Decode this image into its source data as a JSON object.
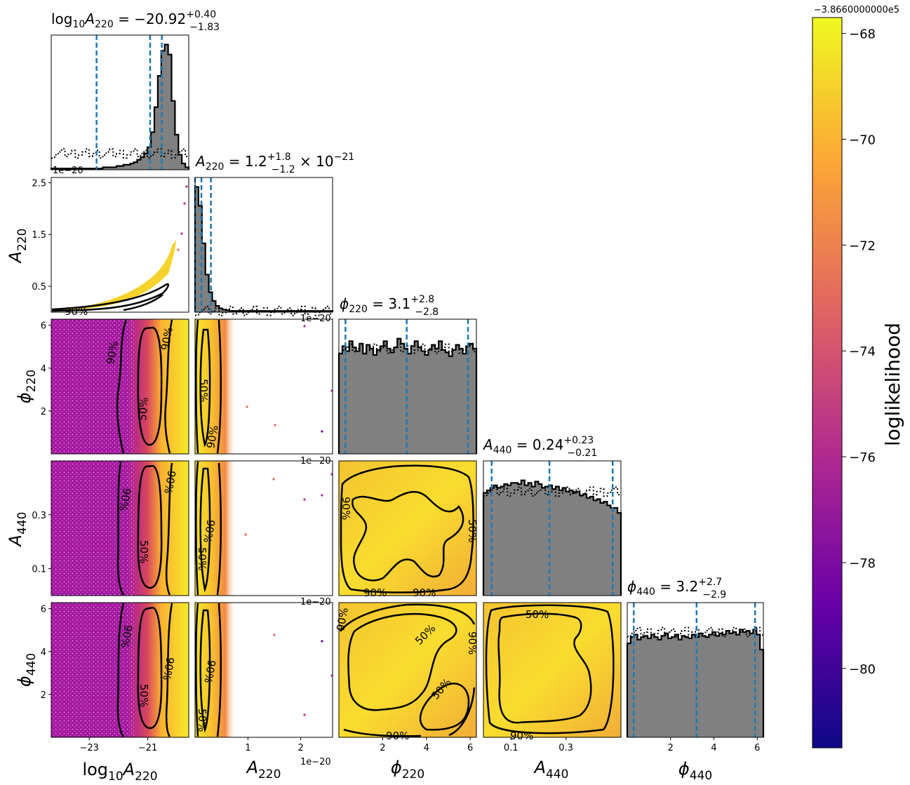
{
  "chart_data": {
    "type": "corner",
    "description_free": true,
    "parameters": [
      {
        "key": "log10A220",
        "axis_label": "log10A220",
        "title": "log10A220 = -20.92 +0.40 -1.83",
        "range": [
          -24.3,
          -19.6
        ],
        "ticks": [
          -23,
          -21
        ],
        "tick_labels": [
          "−23",
          "−21"
        ],
        "quantiles": [
          -22.75,
          -20.92,
          -20.52
        ],
        "peak": -20.92,
        "prior": "uniform"
      },
      {
        "key": "A220",
        "axis_label": "A220",
        "title": "A220 = 1.2 +1.8 -1.2 × 10^-21",
        "range": [
          0,
          2.6
        ],
        "scale_note": "1e−20",
        "ticks": [
          1,
          2
        ],
        "tick_labels": [
          "1",
          "2"
        ],
        "quantiles": [
          0.0,
          0.12,
          0.3
        ],
        "peak": 0.1,
        "prior": "uniform"
      },
      {
        "key": "phi220",
        "axis_label": "φ220",
        "title": "φ220 = 3.1 +2.8 -2.8",
        "range": [
          0,
          6.283
        ],
        "ticks": [
          2,
          4,
          6
        ],
        "tick_labels": [
          "2",
          "4",
          "6"
        ],
        "quantiles": [
          0.3,
          3.1,
          5.9
        ],
        "prior": "uniform"
      },
      {
        "key": "A440",
        "axis_label": "A440",
        "title": "A440 = 0.24 +0.23 -0.21",
        "range": [
          0.0,
          0.5
        ],
        "ticks": [
          0.1,
          0.3
        ],
        "tick_labels": [
          "0.1",
          "0.3"
        ],
        "quantiles": [
          0.03,
          0.24,
          0.47
        ],
        "prior": "uniform"
      },
      {
        "key": "phi440",
        "axis_label": "φ440",
        "title": "φ440 = 3.2 +2.7 -2.9",
        "range": [
          0,
          6.283
        ],
        "ticks": [
          2,
          4,
          6
        ],
        "tick_labels": [
          "2",
          "4",
          "6"
        ],
        "quantiles": [
          0.3,
          3.2,
          5.9
        ],
        "prior": "uniform"
      }
    ],
    "y_tick_labels": {
      "A220": {
        "ticks": [
          0.5,
          1.5,
          2.5
        ],
        "labels": [
          "0.5",
          "1.5",
          "2.5"
        ],
        "scale_note": "1e−20"
      },
      "phi220": {
        "ticks": [
          2,
          4,
          6
        ],
        "labels": [
          "2",
          "4",
          "6"
        ]
      },
      "A440": {
        "ticks": [
          0.1,
          0.3
        ],
        "labels": [
          "0.1",
          "0.3"
        ]
      },
      "phi440": {
        "ticks": [
          2,
          4,
          6
        ],
        "labels": [
          "2",
          "4",
          "6"
        ]
      }
    },
    "histograms": {
      "log10A220": [
        0.01,
        0.01,
        0.01,
        0.01,
        0.01,
        0.01,
        0.01,
        0.01,
        0.01,
        0.01,
        0.01,
        0.01,
        0.01,
        0.01,
        0.01,
        0.02,
        0.02,
        0.02,
        0.02,
        0.03,
        0.03,
        0.04,
        0.04,
        0.05,
        0.06,
        0.08,
        0.1,
        0.13,
        0.18,
        0.3,
        0.5,
        0.75,
        0.95,
        1.0,
        0.92,
        0.55,
        0.28,
        0.12,
        0.05,
        0.02
      ],
      "A220": [
        1.0,
        0.85,
        0.55,
        0.3,
        0.16,
        0.09,
        0.05,
        0.03,
        0.02,
        0.015,
        0.01,
        0.01,
        0.01,
        0.01,
        0.01,
        0.01,
        0.01,
        0.01,
        0.01,
        0.01,
        0.01,
        0.01,
        0.01,
        0.01,
        0.01,
        0.01,
        0.01,
        0.01,
        0.01,
        0.01,
        0.01,
        0.01,
        0.01,
        0.01,
        0.01,
        0.01,
        0.01,
        0.01,
        0.01,
        0.01
      ],
      "phi220": [
        0.8,
        0.86,
        0.82,
        0.9,
        0.85,
        0.82,
        0.88,
        0.8,
        0.87,
        0.84,
        0.79,
        0.83,
        0.86,
        0.9,
        0.84,
        0.81,
        0.85,
        0.92,
        0.88,
        0.84,
        0.8,
        0.86,
        0.9,
        0.85,
        0.82,
        0.79,
        0.83,
        0.87,
        0.84,
        0.9,
        0.83,
        0.81,
        0.78,
        0.83,
        0.87,
        0.84,
        0.8,
        0.86,
        0.88,
        0.84
      ],
      "A440": [
        0.82,
        0.84,
        0.86,
        0.88,
        0.86,
        0.87,
        0.89,
        0.88,
        0.9,
        0.9,
        0.89,
        0.92,
        0.88,
        0.9,
        0.87,
        0.91,
        0.89,
        0.86,
        0.87,
        0.88,
        0.85,
        0.87,
        0.84,
        0.86,
        0.83,
        0.84,
        0.82,
        0.83,
        0.8,
        0.81,
        0.78,
        0.79,
        0.76,
        0.77,
        0.74,
        0.75,
        0.72,
        0.7,
        0.7,
        0.66
      ],
      "phi440": [
        0.75,
        0.8,
        0.82,
        0.78,
        0.8,
        0.81,
        0.79,
        0.82,
        0.8,
        0.78,
        0.81,
        0.83,
        0.79,
        0.8,
        0.82,
        0.78,
        0.81,
        0.8,
        0.79,
        0.82,
        0.8,
        0.83,
        0.81,
        0.8,
        0.82,
        0.84,
        0.81,
        0.83,
        0.82,
        0.85,
        0.83,
        0.84,
        0.82,
        0.86,
        0.84,
        0.85,
        0.83,
        0.86,
        0.82,
        0.7
      ]
    },
    "contour_levels": [
      "50%",
      "90%"
    ],
    "colorbar": {
      "label": "loglikelihood",
      "offset_text": "−3.8660000000e5",
      "range": [
        -81.5,
        -67.7
      ],
      "ticks": [
        -68,
        -70,
        -72,
        -74,
        -76,
        -78,
        -80
      ],
      "tick_labels": [
        "−68",
        "−70",
        "−72",
        "−74",
        "−76",
        "−78",
        "−80"
      ],
      "colormap": "plasma",
      "colors": [
        "#0d0887",
        "#6a00a8",
        "#b12a90",
        "#e16462",
        "#fca636",
        "#f0f921"
      ]
    },
    "colors": {
      "histogram_fill": "#808080",
      "quantile_line": "#1f77b4",
      "contour": "#000000"
    }
  }
}
